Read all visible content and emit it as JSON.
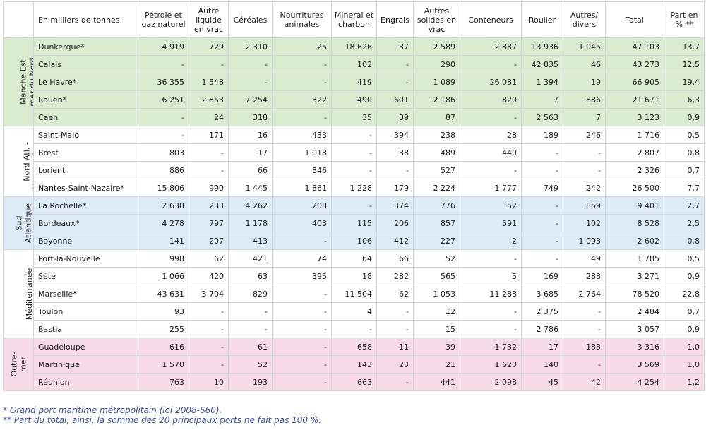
{
  "table": {
    "headers": [
      "En milliers de tonnes",
      "Pétrole et gaz naturel",
      "Autre liquide en vrac",
      "Céréales",
      "Nourritures animales",
      "Minerai et charbon",
      "Engrais",
      "Autres solides en vrac",
      "Conteneurs",
      "Roulier",
      "Autres/ divers",
      "Total",
      "Part en % **"
    ],
    "groups": [
      {
        "region": "Manche Est mer du Nord",
        "color": "green",
        "rows": [
          [
            "Dunkerque*",
            "4 919",
            "729",
            "2 310",
            "25",
            "18 626",
            "37",
            "2 589",
            "2 887",
            "13 936",
            "1 045",
            "47 103",
            "13,7"
          ],
          [
            "Calais",
            "-",
            "-",
            "-",
            "-",
            "102",
            "-",
            "290",
            "-",
            "42 835",
            "46",
            "43 273",
            "12,5"
          ],
          [
            "Le Havre*",
            "36 355",
            "1 548",
            "-",
            "-",
            "419",
            "-",
            "1 089",
            "26 081",
            "1 394",
            "19",
            "66 905",
            "19,4"
          ],
          [
            "Rouen*",
            "6 251",
            "2 853",
            "7 254",
            "322",
            "490",
            "601",
            "2 186",
            "820",
            "7",
            "886",
            "21 671",
            "6,3"
          ],
          [
            "Caen",
            "-",
            "24",
            "318",
            "-",
            "35",
            "89",
            "87",
            "-",
            "2 563",
            "7",
            "3 123",
            "0,9"
          ]
        ]
      },
      {
        "region": "Nord Atl. - Manche Ouest",
        "color": "white",
        "rows": [
          [
            "Saint-Malo",
            "-",
            "171",
            "16",
            "433",
            "-",
            "394",
            "238",
            "28",
            "189",
            "246",
            "1 716",
            "0,5"
          ],
          [
            "Brest",
            "803",
            "-",
            "17",
            "1 018",
            "-",
            "38",
            "489",
            "440",
            "-",
            "-",
            "2 807",
            "0,8"
          ],
          [
            "Lorient",
            "886",
            "-",
            "66",
            "846",
            "-",
            "-",
            "527",
            "-",
            "-",
            "-",
            "2 326",
            "0,7"
          ],
          [
            "Nantes-Saint-Nazaire*",
            "15 806",
            "990",
            "1 445",
            "1 861",
            "1 228",
            "179",
            "2 224",
            "1 777",
            "749",
            "242",
            "26 500",
            "7,7"
          ]
        ]
      },
      {
        "region": "Sud Atlantique",
        "color": "blue",
        "rows": [
          [
            "La Rochelle*",
            "2 638",
            "233",
            "4 262",
            "208",
            "-",
            "374",
            "776",
            "52",
            "-",
            "859",
            "9 401",
            "2,7"
          ],
          [
            "Bordeaux*",
            "4 278",
            "797",
            "1 178",
            "403",
            "115",
            "206",
            "857",
            "591",
            "-",
            "102",
            "8 528",
            "2,5"
          ],
          [
            "Bayonne",
            "141",
            "207",
            "413",
            "-",
            "106",
            "412",
            "227",
            "2",
            "-",
            "1 093",
            "2 602",
            "0,8"
          ]
        ]
      },
      {
        "region": "Méditerranée",
        "color": "white",
        "rows": [
          [
            "Port-la-Nouvelle",
            "998",
            "62",
            "421",
            "74",
            "64",
            "66",
            "52",
            "-",
            "-",
            "49",
            "1 785",
            "0,5"
          ],
          [
            "Sète",
            "1 066",
            "420",
            "63",
            "395",
            "18",
            "282",
            "565",
            "5",
            "169",
            "288",
            "3 271",
            "0,9"
          ],
          [
            "Marseille*",
            "43 631",
            "3 704",
            "829",
            "-",
            "11 504",
            "62",
            "1 053",
            "11 288",
            "3 685",
            "2 764",
            "78 520",
            "22,8"
          ],
          [
            "Toulon",
            "93",
            "-",
            "-",
            "-",
            "4",
            "-",
            "12",
            "-",
            "2 375",
            "-",
            "2 484",
            "0,7"
          ],
          [
            "Bastia",
            "255",
            "-",
            "-",
            "-",
            "-",
            "-",
            "15",
            "-",
            "2 786",
            "-",
            "3 057",
            "0,9"
          ]
        ]
      },
      {
        "region": "Outre-mer",
        "color": "pink",
        "rows": [
          [
            "Guadeloupe",
            "616",
            "-",
            "61",
            "-",
            "658",
            "11",
            "39",
            "1 732",
            "17",
            "183",
            "3 316",
            "1,0"
          ],
          [
            "Martinique",
            "1 570",
            "-",
            "52",
            "-",
            "143",
            "23",
            "21",
            "1 620",
            "140",
            "-",
            "3 569",
            "1,0"
          ],
          [
            "Réunion",
            "763",
            "10",
            "193",
            "-",
            "663",
            "-",
            "441",
            "2 098",
            "45",
            "42",
            "4 254",
            "1,2"
          ]
        ]
      }
    ]
  },
  "notes": [
    "* Grand port maritime métropolitain (loi 2008-660).",
    "** Part du total, ainsi, la somme des 20 principaux ports ne fait pas 100 %."
  ]
}
